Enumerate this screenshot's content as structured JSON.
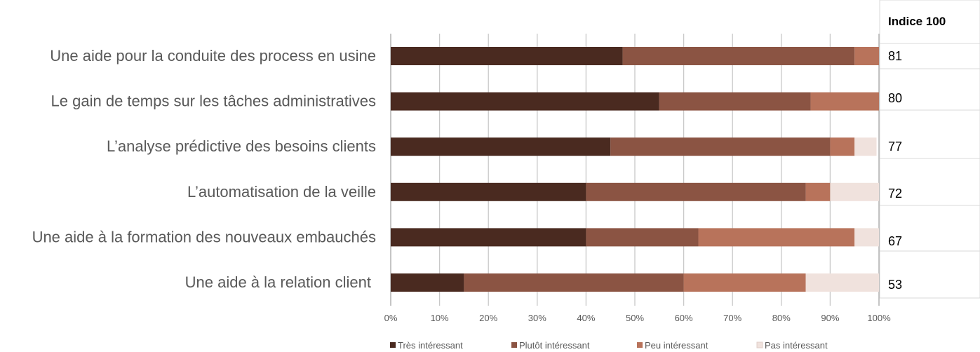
{
  "chart_data": {
    "type": "bar",
    "orientation": "horizontal",
    "stacked": true,
    "categories": [
      "Une aide pour la conduite des process en usine",
      "Le gain de temps sur les tâches administratives",
      "L’analyse prédictive des besoins clients",
      "L’automatisation de la veille",
      "Une aide à la formation des nouveaux embauchés",
      "Une aide à la relation client"
    ],
    "series": [
      {
        "name": "Très intéressant",
        "color": "#4a2a20",
        "values": [
          47.5,
          55,
          45,
          40,
          40,
          15
        ]
      },
      {
        "name": "Plutôt intéressant",
        "color": "#8b5443",
        "values": [
          47.5,
          31,
          45,
          45,
          23,
          45
        ]
      },
      {
        "name": "Peu intéressant",
        "color": "#b8735b",
        "values": [
          5,
          14,
          5,
          5,
          32,
          25
        ]
      },
      {
        "name": "Pas intéressant",
        "color": "#f0e2dd",
        "values": [
          0,
          0,
          4.5,
          10,
          5,
          15
        ]
      }
    ],
    "xlim": [
      0,
      100
    ],
    "xticks": [
      "0%",
      "10%",
      "20%",
      "30%",
      "40%",
      "50%",
      "60%",
      "70%",
      "80%",
      "90%",
      "100%"
    ],
    "grid": true,
    "legend": "bottom",
    "index_table": {
      "header": "Indice 100",
      "values": [
        "81",
        "80",
        "77",
        "72",
        "67",
        "53"
      ]
    }
  }
}
